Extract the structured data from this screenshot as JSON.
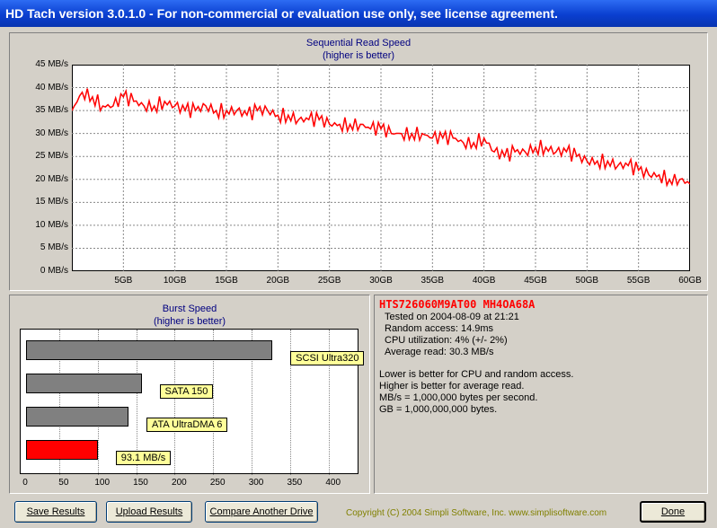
{
  "window": {
    "title": "HD Tach version 3.0.1.0  - For non-commercial or evaluation use only, see license agreement."
  },
  "seq_chart": {
    "title": "Sequential Read Speed",
    "subtitle": "(higher is better)",
    "y_ticks": [
      "45 MB/s",
      "40 MB/s",
      "35 MB/s",
      "30 MB/s",
      "25 MB/s",
      "20 MB/s",
      "15 MB/s",
      "10 MB/s",
      "5 MB/s",
      "0 MB/s"
    ],
    "x_ticks": [
      "5GB",
      "10GB",
      "15GB",
      "20GB",
      "25GB",
      "30GB",
      "35GB",
      "40GB",
      "45GB",
      "50GB",
      "55GB",
      "60GB"
    ],
    "line_color": "#ff0000"
  },
  "burst_chart": {
    "title": "Burst Speed",
    "subtitle": "(higher is better)",
    "x_ticks": [
      "0",
      "50",
      "100",
      "150",
      "200",
      "250",
      "300",
      "350",
      "400"
    ],
    "bar_labels": [
      "SCSI Ultra320",
      "SATA 150",
      "ATA UltraDMA 6",
      "93.1 MB/s"
    ],
    "label_color": "#ffff99"
  },
  "info": {
    "drive_name": "HTS726060M9AT00 MH4OA68A",
    "tested_on": "Tested on 2004-08-09 at 21:21",
    "random_access": "Random access: 14.9ms",
    "cpu_utilization": "CPU utilization: 4% (+/- 2%)",
    "average_read": "Average read: 30.3 MB/s",
    "note_1": "Lower is better for CPU and random access.",
    "note_2": "Higher is better for average read.",
    "note_3": "MB/s = 1,000,000 bytes per second.",
    "note_4": "GB = 1,000,000,000 bytes.",
    "drive_name_color": "#ff0000"
  },
  "buttons": {
    "save": "Save Results",
    "upload": "Upload Results",
    "compare": "Compare Another Drive",
    "done": "Done"
  },
  "footer": {
    "copyright": "Copyright (C) 2004 Simpli Software, Inc. www.simplisoftware.com"
  },
  "chart_data": [
    {
      "type": "line",
      "title": "Sequential Read Speed",
      "subtitle": "(higher is better)",
      "xlabel": "",
      "ylabel": "",
      "xlim": [
        0,
        60
      ],
      "ylim": [
        0,
        45
      ],
      "grid": true,
      "series": [
        {
          "x": [
            0,
            1,
            2,
            3,
            4,
            5,
            6,
            7,
            8,
            9,
            10,
            11,
            12,
            13,
            14,
            15,
            16,
            17,
            18,
            19,
            20,
            21,
            22,
            23,
            24,
            25,
            26,
            27,
            28,
            29,
            30,
            31,
            32,
            33,
            34,
            35,
            36,
            37,
            38,
            39,
            40,
            41,
            42,
            43,
            44,
            45,
            46,
            47,
            48,
            49,
            50,
            51,
            52,
            53,
            54,
            55,
            56,
            57,
            58,
            59,
            60
          ],
          "values": [
            35,
            39,
            38,
            36,
            36,
            38,
            37,
            36,
            36,
            37,
            36,
            35,
            35,
            36,
            35,
            35,
            35,
            34,
            35,
            35,
            34,
            34,
            33,
            33,
            33,
            32,
            32,
            32,
            32,
            31,
            31,
            30,
            30,
            30,
            30,
            29,
            29,
            29,
            28,
            28,
            29,
            26,
            25,
            26,
            26,
            27,
            27,
            26,
            26,
            25,
            24,
            24,
            24,
            23,
            23,
            22,
            21,
            21,
            20,
            20,
            19
          ]
        }
      ]
    },
    {
      "type": "bar",
      "title": "Burst Speed",
      "subtitle": "(higher is better)",
      "xlim": [
        0,
        440
      ],
      "categories": [
        "SCSI Ultra320",
        "SATA 150",
        "ATA UltraDMA 6",
        "93.1 MB/s"
      ],
      "values": [
        320,
        150,
        133,
        93.1
      ],
      "colors": [
        "#808080",
        "#808080",
        "#808080",
        "#ff0000"
      ]
    }
  ]
}
